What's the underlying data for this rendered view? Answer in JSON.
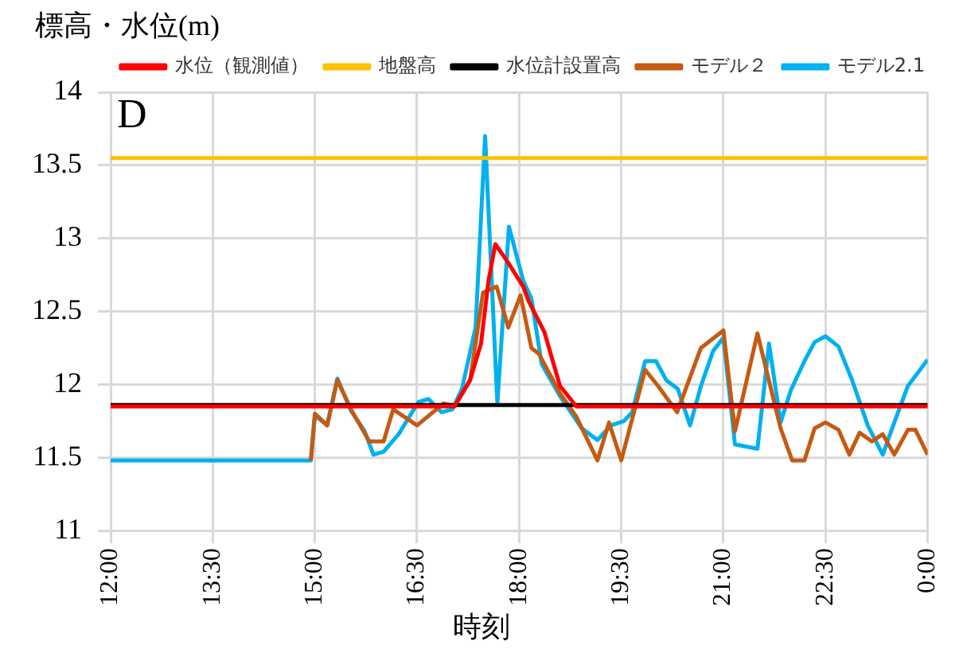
{
  "chart_data": {
    "type": "line",
    "xlabel": "時刻",
    "ylabel": "標高・水位(m)",
    "annotations": [
      "D"
    ],
    "xlim": [
      12,
      24
    ],
    "xticks": [
      {
        "value": 12,
        "label": "12:00"
      },
      {
        "value": 13.5,
        "label": "13:30"
      },
      {
        "value": 15,
        "label": "15:00"
      },
      {
        "value": 16.5,
        "label": "16:30"
      },
      {
        "value": 18,
        "label": "18:00"
      },
      {
        "value": 19.5,
        "label": "19:30"
      },
      {
        "value": 21,
        "label": "21:00"
      },
      {
        "value": 22.5,
        "label": "22:30"
      },
      {
        "value": 24,
        "label": "0:00"
      }
    ],
    "ylim": [
      11,
      14
    ],
    "yticks": [
      11,
      11.5,
      12,
      12.5,
      13,
      13.5,
      14
    ],
    "grid": true,
    "legend": "top right",
    "marker": "none",
    "line_style": "solid",
    "series": [
      {
        "name": "水位（観測値）",
        "color": "#ff0000",
        "x": [
          12,
          17.05,
          17.28,
          17.44,
          17.55,
          17.65,
          17.83,
          18.06,
          18.14,
          18.37,
          18.6,
          18.84,
          24
        ],
        "values": [
          11.85,
          11.85,
          12.03,
          12.28,
          12.71,
          12.96,
          12.84,
          12.67,
          12.57,
          12.36,
          11.99,
          11.85,
          11.85
        ]
      },
      {
        "name": "地盤高",
        "color": "#ffc000",
        "x": [
          12,
          24
        ],
        "values": [
          13.55,
          13.55
        ]
      },
      {
        "name": "水位計設置高",
        "color": "#000000",
        "x": [
          12,
          24
        ],
        "values": [
          11.86,
          11.86
        ]
      },
      {
        "name": "モデル２",
        "color": "#c55a11",
        "x": [
          14.94,
          15.0,
          15.18,
          15.33,
          15.53,
          15.8,
          16.01,
          16.15,
          16.5,
          16.89,
          17.05,
          17.28,
          17.47,
          17.67,
          17.84,
          18.02,
          18.18,
          18.29,
          18.6,
          18.84,
          19.15,
          19.32,
          19.5,
          19.85,
          20.04,
          20.32,
          20.67,
          21.0,
          21.17,
          21.5,
          21.84,
          22.01,
          22.19,
          22.34,
          22.5,
          22.69,
          22.85,
          23.0,
          23.18,
          23.34,
          23.51,
          23.71,
          23.82,
          24.0
        ],
        "values": [
          11.48,
          11.8,
          11.72,
          12.03,
          11.83,
          11.61,
          11.61,
          11.83,
          11.72,
          11.87,
          11.85,
          12.03,
          12.63,
          12.67,
          12.39,
          12.61,
          12.25,
          12.21,
          11.94,
          11.78,
          11.48,
          11.74,
          11.48,
          12.1,
          11.99,
          11.81,
          12.25,
          12.37,
          11.68,
          12.35,
          11.7,
          11.48,
          11.48,
          11.7,
          11.74,
          11.69,
          11.52,
          11.67,
          11.61,
          11.66,
          11.52,
          11.69,
          11.69,
          11.52
        ]
      },
      {
        "name": "モデル2.1",
        "color": "#00b0f0",
        "x": [
          12,
          14.94,
          15.0,
          15.18,
          15.33,
          15.53,
          15.73,
          15.86,
          16.01,
          16.23,
          16.52,
          16.67,
          16.86,
          17.02,
          17.16,
          17.36,
          17.5,
          17.68,
          17.85,
          18.06,
          18.18,
          18.33,
          18.6,
          18.92,
          19.15,
          19.35,
          19.54,
          19.66,
          19.85,
          20.01,
          20.16,
          20.33,
          20.51,
          20.67,
          20.85,
          21.0,
          21.17,
          21.5,
          21.67,
          21.84,
          21.99,
          22.19,
          22.34,
          22.5,
          22.69,
          22.89,
          23.12,
          23.34,
          23.51,
          23.71,
          24.0
        ],
        "values": [
          11.48,
          11.48,
          11.79,
          11.72,
          12.04,
          11.82,
          11.68,
          11.52,
          11.54,
          11.66,
          11.88,
          11.9,
          11.81,
          11.83,
          11.97,
          12.39,
          13.7,
          11.87,
          13.08,
          12.71,
          12.59,
          12.14,
          11.92,
          11.7,
          11.62,
          11.72,
          11.75,
          11.81,
          12.16,
          12.16,
          12.03,
          11.97,
          11.72,
          11.99,
          12.23,
          12.32,
          11.59,
          11.56,
          12.28,
          11.74,
          11.96,
          12.16,
          12.29,
          12.33,
          12.26,
          12.03,
          11.72,
          11.52,
          11.74,
          11.99,
          12.17
        ]
      }
    ]
  }
}
